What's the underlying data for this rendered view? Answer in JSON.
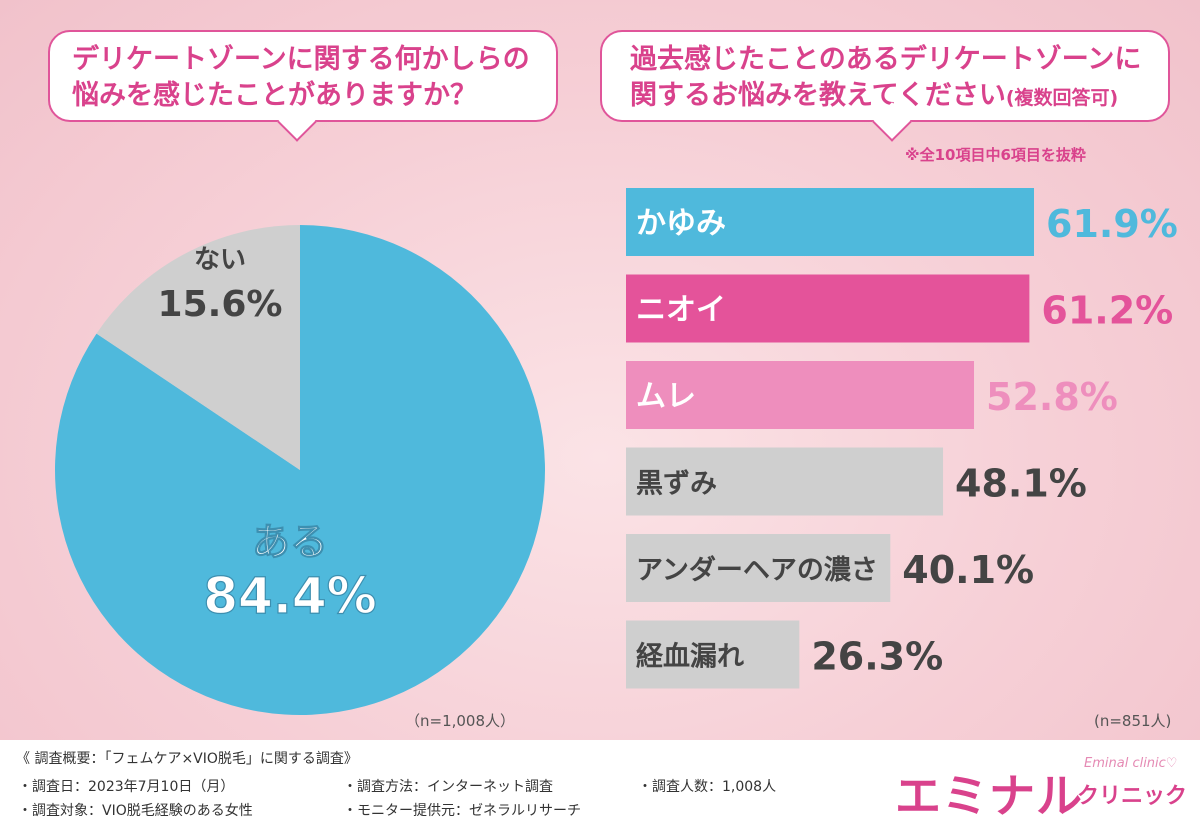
{
  "left_question": {
    "line1": "デリケートゾーンに関する何かしらの",
    "line2": "悩みを感じたことがありますか？"
  },
  "right_question": {
    "line1": "過去感じたことのあるデリケートゾーンに",
    "line2": "関するお悩みを教えてください",
    "suffix": "(複数回答可)"
  },
  "right_note": "※全10項目中6項目を抜粋",
  "left_n": "（n=1,008人）",
  "right_n": "(n=851人)",
  "colors": {
    "blue": "#4fb9dc",
    "pink_dark": "#e4539a",
    "pink_light": "#ee8ebd",
    "gray": "#cfcfcf",
    "accent": "#d9428c"
  },
  "chart_data": [
    {
      "type": "pie",
      "slices": [
        {
          "label": "ある",
          "value": 84.4,
          "display": "84.4%",
          "color": "#4fb9dc"
        },
        {
          "label": "ない",
          "value": 15.6,
          "display": "15.6%",
          "color": "#cfcfcf"
        }
      ]
    },
    {
      "type": "bar",
      "orientation": "horizontal",
      "categories": [
        "かゆみ",
        "ニオイ",
        "ムレ",
        "黒ずみ",
        "アンダーヘアの濃さ",
        "経血漏れ"
      ],
      "values": [
        61.9,
        61.2,
        52.8,
        48.1,
        40.1,
        26.3
      ],
      "labels": [
        "61.9%",
        "61.2%",
        "52.8%",
        "48.1%",
        "40.1%",
        "26.3%"
      ],
      "colors": [
        "#4fb9dc",
        "#e4539a",
        "#ee8ebd",
        "#cfcfcf",
        "#cfcfcf",
        "#cfcfcf"
      ],
      "xlim": [
        0,
        61.9
      ]
    }
  ],
  "footer": {
    "title": "《 調査概要：「フェムケア×VIO脱毛」に関する調査》",
    "date": "・調査日：2023年7月10日（月）",
    "target": "・調査対象：VIO脱毛経験のある女性",
    "method": "・調査方法：インターネット調査",
    "monitor": "・モニター提供元：ゼネラルリサーチ",
    "count": "・調査人数：1,008人"
  },
  "logo": {
    "main": "エミナル",
    "sub": "クリニック",
    "en": "Eminal clinic♡"
  }
}
